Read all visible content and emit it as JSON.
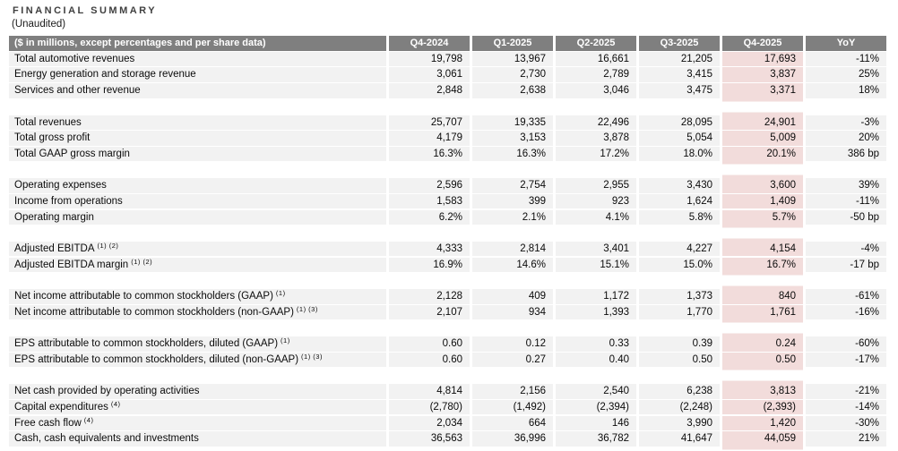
{
  "title": "FINANCIAL SUMMARY",
  "subtitle": "(Unaudited)",
  "table": {
    "colors": {
      "header_bg": "#7f7f7f",
      "row_bg": "#f2f2f2",
      "highlight_bg": "#f2dcdb",
      "header_text": "#ffffff"
    },
    "highlight_column": "Q4-2025",
    "header": [
      "($ in millions, except percentages and per share data)",
      "Q4-2024",
      "Q1-2025",
      "Q2-2025",
      "Q3-2025",
      "Q4-2025",
      "YoY"
    ],
    "sections": [
      {
        "rows": [
          {
            "label": "Total automotive revenues",
            "sup": "",
            "values": [
              "19,798",
              "13,967",
              "16,661",
              "21,205",
              "17,693",
              "-11%"
            ]
          },
          {
            "label": "Energy generation and storage revenue",
            "sup": "",
            "values": [
              "3,061",
              "2,730",
              "2,789",
              "3,415",
              "3,837",
              "25%"
            ]
          },
          {
            "label": "Services and other revenue",
            "sup": "",
            "values": [
              "2,848",
              "2,638",
              "3,046",
              "3,475",
              "3,371",
              "18%"
            ]
          }
        ]
      },
      {
        "rows": [
          {
            "label": "Total revenues",
            "sup": "",
            "values": [
              "25,707",
              "19,335",
              "22,496",
              "28,095",
              "24,901",
              "-3%"
            ]
          },
          {
            "label": "Total gross profit",
            "sup": "",
            "values": [
              "4,179",
              "3,153",
              "3,878",
              "5,054",
              "5,009",
              "20%"
            ]
          },
          {
            "label": "Total GAAP gross margin",
            "sup": "",
            "values": [
              "16.3%",
              "16.3%",
              "17.2%",
              "18.0%",
              "20.1%",
              "386 bp"
            ]
          }
        ]
      },
      {
        "rows": [
          {
            "label": "Operating expenses",
            "sup": "",
            "values": [
              "2,596",
              "2,754",
              "2,955",
              "3,430",
              "3,600",
              "39%"
            ]
          },
          {
            "label": "Income from operations",
            "sup": "",
            "values": [
              "1,583",
              "399",
              "923",
              "1,624",
              "1,409",
              "-11%"
            ]
          },
          {
            "label": "Operating margin",
            "sup": "",
            "values": [
              "6.2%",
              "2.1%",
              "4.1%",
              "5.8%",
              "5.7%",
              "-50 bp"
            ]
          }
        ]
      },
      {
        "rows": [
          {
            "label": "Adjusted EBITDA",
            "sup": "(1) (2)",
            "values": [
              "4,333",
              "2,814",
              "3,401",
              "4,227",
              "4,154",
              "-4%"
            ]
          },
          {
            "label": "Adjusted EBITDA margin",
            "sup": "(1) (2)",
            "values": [
              "16.9%",
              "14.6%",
              "15.1%",
              "15.0%",
              "16.7%",
              "-17 bp"
            ]
          }
        ]
      },
      {
        "rows": [
          {
            "label": "Net income attributable to common stockholders (GAAP)",
            "sup": "(1)",
            "values": [
              "2,128",
              "409",
              "1,172",
              "1,373",
              "840",
              "-61%"
            ]
          },
          {
            "label": "Net income attributable to common stockholders (non-GAAP)",
            "sup": "(1) (3)",
            "values": [
              "2,107",
              "934",
              "1,393",
              "1,770",
              "1,761",
              "-16%"
            ]
          }
        ]
      },
      {
        "rows": [
          {
            "label": "EPS attributable to common stockholders, diluted (GAAP)",
            "sup": "(1)",
            "values": [
              "0.60",
              "0.12",
              "0.33",
              "0.39",
              "0.24",
              "-60%"
            ]
          },
          {
            "label": "EPS attributable to common stockholders, diluted (non-GAAP)",
            "sup": "(1) (3)",
            "values": [
              "0.60",
              "0.27",
              "0.40",
              "0.50",
              "0.50",
              "-17%"
            ]
          }
        ]
      },
      {
        "rows": [
          {
            "label": "Net cash provided by operating activities",
            "sup": "",
            "values": [
              "4,814",
              "2,156",
              "2,540",
              "6,238",
              "3,813",
              "-21%"
            ]
          },
          {
            "label": "Capital expenditures",
            "sup": "(4)",
            "values": [
              "(2,780)",
              "(1,492)",
              "(2,394)",
              "(2,248)",
              "(2,393)",
              "-14%"
            ]
          },
          {
            "label": "Free cash flow",
            "sup": "(4)",
            "values": [
              "2,034",
              "664",
              "146",
              "3,990",
              "1,420",
              "-30%"
            ]
          },
          {
            "label": "Cash, cash equivalents and investments",
            "sup": "",
            "values": [
              "36,563",
              "36,996",
              "36,782",
              "41,647",
              "44,059",
              "21%"
            ]
          }
        ]
      }
    ]
  }
}
